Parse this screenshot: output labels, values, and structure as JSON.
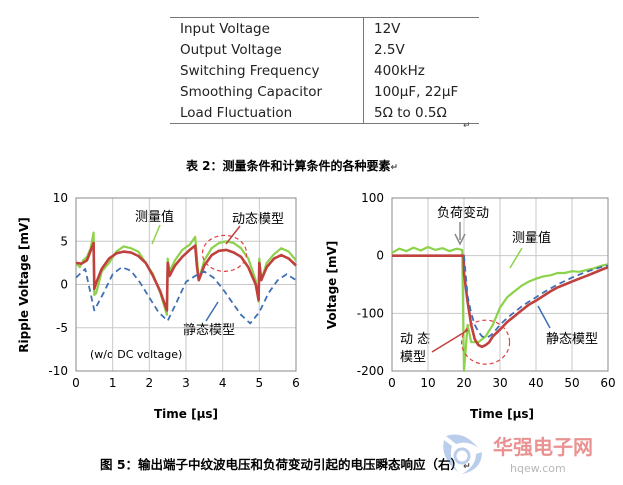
{
  "table": {
    "rows": [
      {
        "label": "Input Voltage",
        "value": "12V"
      },
      {
        "label": "Output Voltage",
        "value": "2.5V"
      },
      {
        "label": "Switching Frequency",
        "value": "400kHz"
      },
      {
        "label": "Smoothing Capacitor",
        "value": "100µF, 22µF"
      },
      {
        "label": "Load Fluctuation",
        "value": "5Ω to 0.5Ω"
      }
    ]
  },
  "table_caption": "表 2：测量条件和计算条件的各种要素",
  "figure_caption": "图 5：输出端子中纹波电压和负荷变动引起的电压瞬态响应（右）",
  "return_mark": "↵",
  "watermark": {
    "text": "华强电子网",
    "url": "hqew.com"
  },
  "colors": {
    "measured": "#8cd24a",
    "dynamic": "#c0403d",
    "static": "#3f6fb5",
    "highlight": "#e04040"
  },
  "chart_data": [
    {
      "type": "line",
      "xlabel": "Time [µs]",
      "ylabel": "Ripple Voltage [mV]",
      "xlim": [
        0,
        6
      ],
      "ylim": [
        -10,
        10
      ],
      "xticks": [
        "0",
        "1",
        "2",
        "3",
        "4",
        "5",
        "6"
      ],
      "yticks": [
        "10",
        "5",
        "0",
        "-5",
        "-10"
      ],
      "grid": true,
      "annotations": {
        "measured": "测量值",
        "dynamic": "动态模型",
        "static": "静态模型",
        "note": "(w/o DC voltage)"
      },
      "series": [
        {
          "name": "测量值",
          "style": "solid",
          "x": [
            0,
            0.1,
            0.2,
            0.3,
            0.4,
            0.48,
            0.5,
            0.55,
            0.7,
            0.9,
            1.1,
            1.3,
            1.5,
            1.7,
            1.9,
            2.1,
            2.3,
            2.48,
            2.5,
            2.55,
            2.7,
            2.9,
            3.1,
            3.25,
            3.3,
            3.35,
            3.5,
            3.7,
            3.9,
            4.1,
            4.3,
            4.5,
            4.7,
            4.9,
            4.98,
            5.0,
            5.05,
            5.2,
            5.4,
            5.6,
            5.8,
            6.0
          ],
          "y": [
            2.5,
            2.0,
            2.8,
            3.2,
            4.2,
            6.0,
            -1.2,
            -1.0,
            1.5,
            2.5,
            3.8,
            4.4,
            4.2,
            3.8,
            2.5,
            1.2,
            -1.0,
            -3.5,
            3.0,
            1.5,
            2.8,
            4.0,
            4.6,
            5.5,
            3.0,
            0.5,
            2.8,
            4.2,
            4.8,
            5.0,
            4.8,
            4.2,
            3.0,
            0.5,
            -2.0,
            3.0,
            0.5,
            2.5,
            3.5,
            4.2,
            3.8,
            2.8
          ]
        },
        {
          "name": "动态模型",
          "style": "solid",
          "x": [
            0,
            0.15,
            0.3,
            0.48,
            0.5,
            0.55,
            0.7,
            0.9,
            1.1,
            1.3,
            1.5,
            1.7,
            1.9,
            2.1,
            2.3,
            2.48,
            2.5,
            2.55,
            2.7,
            2.9,
            3.1,
            3.25,
            3.3,
            3.35,
            3.5,
            3.7,
            3.9,
            4.1,
            4.3,
            4.5,
            4.7,
            4.9,
            4.98,
            5.0,
            5.05,
            5.2,
            5.4,
            5.6,
            5.8,
            6.0
          ],
          "y": [
            2.5,
            2.4,
            2.8,
            4.8,
            -0.5,
            0.2,
            1.8,
            3.0,
            3.6,
            3.8,
            3.7,
            3.3,
            2.5,
            1.0,
            -0.8,
            -3.0,
            2.5,
            1.0,
            2.2,
            3.2,
            4.0,
            4.5,
            2.0,
            0.5,
            2.2,
            3.4,
            3.9,
            4.0,
            3.7,
            3.2,
            2.0,
            0.0,
            -1.8,
            2.5,
            0.5,
            2.0,
            3.0,
            3.4,
            3.0,
            2.2
          ]
        },
        {
          "name": "静态模型",
          "style": "dashed",
          "x": [
            0,
            0.25,
            0.5,
            0.75,
            1.0,
            1.25,
            1.5,
            1.75,
            2.0,
            2.25,
            2.5,
            2.75,
            3.0,
            3.25,
            3.5,
            3.75,
            4.0,
            4.25,
            4.5,
            4.75,
            5.0,
            5.25,
            5.5,
            5.75,
            6.0
          ],
          "y": [
            0.8,
            1.8,
            -3.0,
            -1.0,
            1.2,
            2.0,
            1.6,
            0.2,
            -1.5,
            -3.2,
            -4.2,
            -2.0,
            0.3,
            1.0,
            1.5,
            0.8,
            -0.5,
            -2.0,
            -3.5,
            -4.5,
            -3.2,
            -1.0,
            0.5,
            1.2,
            0.5
          ]
        }
      ]
    },
    {
      "type": "line",
      "xlabel": "Time [µs]",
      "ylabel": "Voltage [mV]",
      "xlim": [
        0,
        60
      ],
      "ylim": [
        -200,
        100
      ],
      "xticks": [
        "0",
        "10",
        "20",
        "30",
        "40",
        "50",
        "60"
      ],
      "yticks": [
        "100",
        "0",
        "-100",
        "-200"
      ],
      "grid": true,
      "annotations": {
        "load_change": "负荷变动",
        "measured": "测量值",
        "static": "静态模型",
        "dynamic_line1": "动 态",
        "dynamic_line2": "模型"
      },
      "series": [
        {
          "name": "测量值",
          "style": "solid",
          "x": [
            0,
            2,
            4,
            6,
            8,
            10,
            12,
            14,
            16,
            18,
            19.5,
            20,
            21,
            22,
            24,
            26,
            28,
            30,
            32,
            34,
            36,
            38,
            40,
            42,
            44,
            46,
            48,
            50,
            52,
            54,
            56,
            58,
            60
          ],
          "y": [
            5,
            12,
            8,
            14,
            9,
            15,
            10,
            13,
            8,
            12,
            10,
            -200,
            -120,
            -150,
            -150,
            -140,
            -120,
            -90,
            -72,
            -62,
            -52,
            -45,
            -40,
            -36,
            -34,
            -30,
            -30,
            -27,
            -28,
            -25,
            -22,
            -18,
            -15
          ]
        },
        {
          "name": "动态模型",
          "style": "solid",
          "x": [
            0,
            10,
            19.9,
            20,
            21,
            22,
            23,
            24,
            25,
            26,
            27,
            28,
            30,
            32,
            34,
            36,
            38,
            40,
            42,
            44,
            46,
            48,
            50,
            52,
            54,
            56,
            58,
            60
          ],
          "y": [
            0,
            0,
            0,
            -30,
            -80,
            -120,
            -145,
            -155,
            -158,
            -155,
            -150,
            -140,
            -128,
            -115,
            -105,
            -95,
            -85,
            -78,
            -70,
            -62,
            -55,
            -50,
            -45,
            -40,
            -35,
            -30,
            -25,
            -20
          ]
        },
        {
          "name": "静态模型",
          "style": "dashed",
          "x": [
            20,
            21,
            22,
            23,
            24,
            25,
            26,
            27,
            28,
            30,
            32,
            34,
            36,
            38,
            40,
            42,
            44,
            46,
            48,
            50,
            52,
            54,
            56,
            58,
            60
          ],
          "y": [
            0,
            -70,
            -100,
            -120,
            -132,
            -140,
            -142,
            -140,
            -135,
            -120,
            -108,
            -98,
            -88,
            -80,
            -72,
            -64,
            -57,
            -50,
            -44,
            -38,
            -33,
            -28,
            -24,
            -20,
            -17
          ]
        }
      ]
    }
  ]
}
